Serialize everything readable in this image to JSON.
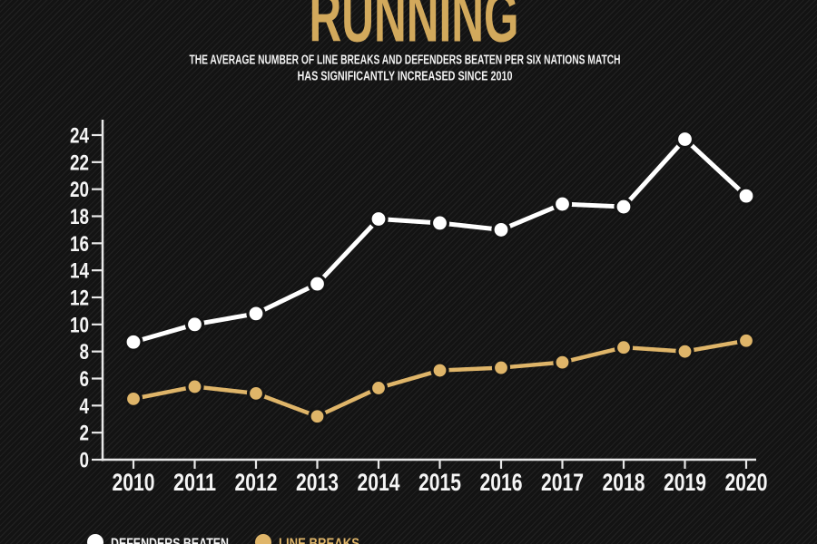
{
  "header": {
    "title": "RUNNING",
    "subtitle_line1": "THE AVERAGE NUMBER OF LINE BREAKS AND DEFENDERS BEATEN PER SIX NATIONS MATCH",
    "subtitle_line2": "HAS SIGNIFICANTLY INCREASED SINCE 2010"
  },
  "colors": {
    "background": "#131313",
    "stripe": "#1e1e1e",
    "title_gold": "#d2a95c",
    "line_breaks_gold": "#dfb569",
    "defenders_white": "#ffffff",
    "axis": "#e8e8e8",
    "tick_label": "#f5f5f5",
    "dot_ring": "#141414"
  },
  "chart_data": {
    "type": "line",
    "title": "RUNNING",
    "subtitle": "THE AVERAGE NUMBER OF LINE BREAKS AND DEFENDERS BEATEN PER SIX NATIONS MATCH HAS SIGNIFICANTLY INCREASED SINCE 2010",
    "x": [
      2010,
      2011,
      2012,
      2013,
      2014,
      2015,
      2016,
      2017,
      2018,
      2019,
      2020
    ],
    "series": [
      {
        "name": "DEFENDERS BEATEN",
        "color": "#ffffff",
        "values": [
          8.7,
          10.0,
          10.8,
          13.0,
          17.8,
          17.5,
          17.0,
          18.9,
          18.7,
          23.7,
          19.5
        ]
      },
      {
        "name": "LINE BREAKS",
        "color": "#dfb569",
        "values": [
          4.5,
          5.4,
          4.9,
          3.2,
          5.3,
          6.6,
          6.8,
          7.2,
          8.3,
          8.0,
          8.8
        ]
      }
    ],
    "xlabel": "",
    "ylabel": "",
    "ylim": [
      0,
      24
    ],
    "ytick_step": 2,
    "grid": false,
    "legend_position": "bottom-left"
  },
  "legend": {
    "items": [
      {
        "label": "DEFENDERS BEATEN",
        "color": "#ffffff"
      },
      {
        "label": "LINE BREAKS",
        "color": "#dfb569"
      }
    ]
  }
}
